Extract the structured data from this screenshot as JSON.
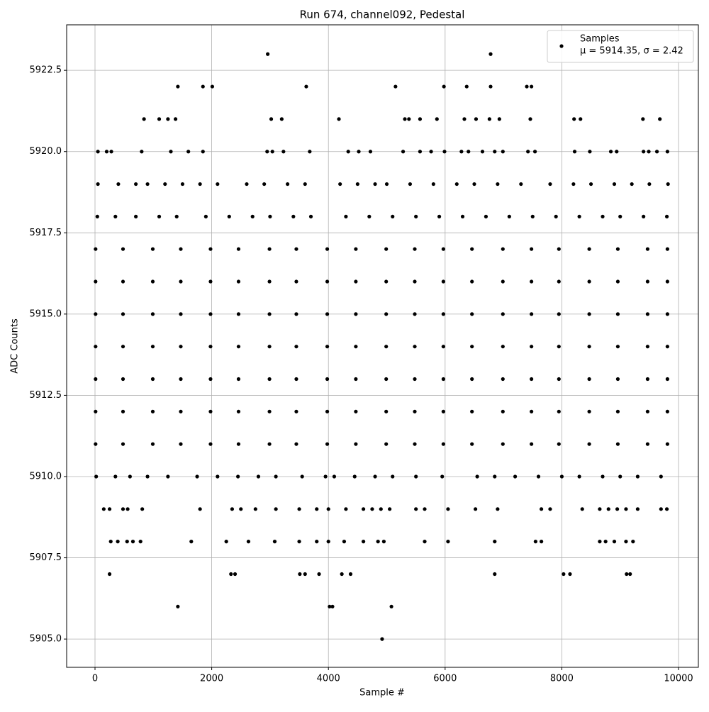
{
  "chart_data": {
    "type": "scatter",
    "title": "Run 674, channel092, Pedestal",
    "x_label": "Sample #",
    "y_label": "ADC Counts",
    "series": [
      {
        "name": "Samples",
        "color": "#000000",
        "x": [
          2960,
          6780,
          1420,
          1850,
          2010,
          3620,
          5150,
          5980,
          6370,
          6780,
          7400,
          7480,
          840,
          1100,
          1250,
          1380,
          3020,
          3200,
          4180,
          5310,
          5380,
          5570,
          5860,
          6330,
          6530,
          6760,
          6930,
          7460,
          8210,
          8320,
          9390,
          9680,
          50,
          200,
          280,
          800,
          1300,
          1600,
          1850,
          2950,
          3040,
          3230,
          3680,
          4340,
          4520,
          4720,
          5280,
          5570,
          5760,
          5990,
          6280,
          6400,
          6640,
          6850,
          6990,
          7420,
          7540,
          8220,
          8480,
          8840,
          8940,
          9400,
          9490,
          9630,
          9810,
          50,
          400,
          700,
          900,
          1200,
          1500,
          1800,
          2100,
          2600,
          2900,
          3300,
          3600,
          4200,
          4500,
          4800,
          5000,
          5400,
          5800,
          6200,
          6500,
          6900,
          7300,
          7800,
          8200,
          8500,
          8900,
          9200,
          9500,
          9820,
          40,
          350,
          700,
          1100,
          1400,
          1900,
          2300,
          2700,
          3000,
          3400,
          3700,
          4300,
          4700,
          5100,
          5500,
          5900,
          6300,
          6700,
          7100,
          7500,
          7900,
          8300,
          8700,
          9000,
          9400,
          9800,
          10,
          480,
          990,
          1470,
          1980,
          2460,
          2990,
          3450,
          3980,
          4470,
          4990,
          5480,
          5970,
          6460,
          6990,
          7480,
          7950,
          8470,
          8960,
          9470,
          9810,
          10,
          480,
          990,
          1470,
          1980,
          2460,
          2990,
          3450,
          3980,
          4470,
          4990,
          5480,
          5970,
          6460,
          6990,
          7480,
          7950,
          8470,
          8960,
          9470,
          9810,
          10,
          480,
          990,
          1470,
          1980,
          2460,
          2990,
          3450,
          3980,
          4470,
          4990,
          5480,
          5970,
          6460,
          6990,
          7480,
          7950,
          8470,
          8960,
          9470,
          9810,
          10,
          480,
          990,
          1470,
          1980,
          2460,
          2990,
          3450,
          3980,
          4470,
          4990,
          5480,
          5970,
          6460,
          6990,
          7480,
          7950,
          8470,
          8960,
          9470,
          9810,
          10,
          480,
          990,
          1470,
          1980,
          2460,
          2990,
          3450,
          3980,
          4470,
          4990,
          5480,
          5970,
          6460,
          6990,
          7480,
          7950,
          8470,
          8960,
          9470,
          9810,
          10,
          480,
          990,
          1470,
          1980,
          2460,
          2990,
          3450,
          3980,
          4470,
          4990,
          5480,
          5970,
          6460,
          6990,
          7480,
          7950,
          8470,
          8960,
          9470,
          9810,
          10,
          480,
          990,
          1470,
          1980,
          2460,
          2990,
          3450,
          3980,
          4470,
          4990,
          5480,
          5970,
          6460,
          6990,
          7480,
          7950,
          8470,
          8960,
          9470,
          9810,
          20,
          350,
          600,
          900,
          1250,
          1750,
          2100,
          2450,
          2800,
          3100,
          3550,
          3950,
          4100,
          4450,
          4800,
          5100,
          5500,
          5950,
          6550,
          6850,
          7200,
          7600,
          8000,
          8300,
          8700,
          9000,
          9300,
          9700,
          150,
          250,
          480,
          560,
          810,
          1800,
          2350,
          2500,
          2750,
          3100,
          3500,
          3800,
          4000,
          4300,
          4600,
          4750,
          4900,
          5050,
          5500,
          5650,
          6050,
          6520,
          6900,
          7650,
          7800,
          8350,
          8650,
          8800,
          8950,
          9100,
          9300,
          9700,
          9800,
          270,
          390,
          550,
          650,
          780,
          1650,
          2250,
          2630,
          3080,
          3500,
          3800,
          4000,
          4270,
          4600,
          4850,
          4950,
          5650,
          6050,
          6850,
          7550,
          7650,
          8650,
          8750,
          8900,
          9100,
          9220,
          250,
          2330,
          2400,
          3510,
          3600,
          3840,
          4230,
          4380,
          6850,
          8030,
          8140,
          9110,
          9170,
          1420,
          4020,
          4070,
          5080,
          4920
        ],
        "y": [
          5923,
          5923,
          5922,
          5922,
          5922,
          5922,
          5922,
          5922,
          5922,
          5922,
          5922,
          5922,
          5921,
          5921,
          5921,
          5921,
          5921,
          5921,
          5921,
          5921,
          5921,
          5921,
          5921,
          5921,
          5921,
          5921,
          5921,
          5921,
          5921,
          5921,
          5921,
          5921,
          5920,
          5920,
          5920,
          5920,
          5920,
          5920,
          5920,
          5920,
          5920,
          5920,
          5920,
          5920,
          5920,
          5920,
          5920,
          5920,
          5920,
          5920,
          5920,
          5920,
          5920,
          5920,
          5920,
          5920,
          5920,
          5920,
          5920,
          5920,
          5920,
          5920,
          5920,
          5920,
          5920,
          5919,
          5919,
          5919,
          5919,
          5919,
          5919,
          5919,
          5919,
          5919,
          5919,
          5919,
          5919,
          5919,
          5919,
          5919,
          5919,
          5919,
          5919,
          5919,
          5919,
          5919,
          5919,
          5919,
          5919,
          5919,
          5919,
          5919,
          5919,
          5919,
          5918,
          5918,
          5918,
          5918,
          5918,
          5918,
          5918,
          5918,
          5918,
          5918,
          5918,
          5918,
          5918,
          5918,
          5918,
          5918,
          5918,
          5918,
          5918,
          5918,
          5918,
          5918,
          5918,
          5918,
          5918,
          5918,
          5917,
          5917,
          5917,
          5917,
          5917,
          5917,
          5917,
          5917,
          5917,
          5917,
          5917,
          5917,
          5917,
          5917,
          5917,
          5917,
          5917,
          5917,
          5917,
          5917,
          5917,
          5916,
          5916,
          5916,
          5916,
          5916,
          5916,
          5916,
          5916,
          5916,
          5916,
          5916,
          5916,
          5916,
          5916,
          5916,
          5916,
          5916,
          5916,
          5916,
          5916,
          5916,
          5915,
          5915,
          5915,
          5915,
          5915,
          5915,
          5915,
          5915,
          5915,
          5915,
          5915,
          5915,
          5915,
          5915,
          5915,
          5915,
          5915,
          5915,
          5915,
          5915,
          5915,
          5914,
          5914,
          5914,
          5914,
          5914,
          5914,
          5914,
          5914,
          5914,
          5914,
          5914,
          5914,
          5914,
          5914,
          5914,
          5914,
          5914,
          5914,
          5914,
          5914,
          5914,
          5913,
          5913,
          5913,
          5913,
          5913,
          5913,
          5913,
          5913,
          5913,
          5913,
          5913,
          5913,
          5913,
          5913,
          5913,
          5913,
          5913,
          5913,
          5913,
          5913,
          5913,
          5912,
          5912,
          5912,
          5912,
          5912,
          5912,
          5912,
          5912,
          5912,
          5912,
          5912,
          5912,
          5912,
          5912,
          5912,
          5912,
          5912,
          5912,
          5912,
          5912,
          5912,
          5911,
          5911,
          5911,
          5911,
          5911,
          5911,
          5911,
          5911,
          5911,
          5911,
          5911,
          5911,
          5911,
          5911,
          5911,
          5911,
          5911,
          5911,
          5911,
          5911,
          5911,
          5910,
          5910,
          5910,
          5910,
          5910,
          5910,
          5910,
          5910,
          5910,
          5910,
          5910,
          5910,
          5910,
          5910,
          5910,
          5910,
          5910,
          5910,
          5910,
          5910,
          5910,
          5910,
          5910,
          5910,
          5910,
          5910,
          5910,
          5910,
          5909,
          5909,
          5909,
          5909,
          5909,
          5909,
          5909,
          5909,
          5909,
          5909,
          5909,
          5909,
          5909,
          5909,
          5909,
          5909,
          5909,
          5909,
          5909,
          5909,
          5909,
          5909,
          5909,
          5909,
          5909,
          5909,
          5909,
          5909,
          5909,
          5909,
          5909,
          5909,
          5909,
          5908,
          5908,
          5908,
          5908,
          5908,
          5908,
          5908,
          5908,
          5908,
          5908,
          5908,
          5908,
          5908,
          5908,
          5908,
          5908,
          5908,
          5908,
          5908,
          5908,
          5908,
          5908,
          5908,
          5908,
          5908,
          5908,
          5907,
          5907,
          5907,
          5907,
          5907,
          5907,
          5907,
          5907,
          5907,
          5907,
          5907,
          5907,
          5907,
          5906,
          5906,
          5906,
          5906,
          5905
        ]
      }
    ],
    "legend_note": "μ = 5914.35, σ = 2.42",
    "legend": "upper right",
    "xlim": [
      -486,
      10340
    ],
    "xticks": [
      0,
      2000,
      4000,
      6000,
      8000,
      10000
    ],
    "ylim": [
      5904.13,
      5923.9
    ],
    "yticks": [
      {
        "value": 5905,
        "label": "5905.0"
      },
      {
        "value": 5907.5,
        "label": "5907.5"
      },
      {
        "value": 5910,
        "label": "5910.0"
      },
      {
        "value": 5912.5,
        "label": "5912.5"
      },
      {
        "value": 5915,
        "label": "5915.0"
      },
      {
        "value": 5917.5,
        "label": "5917.5"
      },
      {
        "value": 5920,
        "label": "5920.0"
      },
      {
        "value": 5922.5,
        "label": "5922.5"
      }
    ],
    "grid": true
  }
}
